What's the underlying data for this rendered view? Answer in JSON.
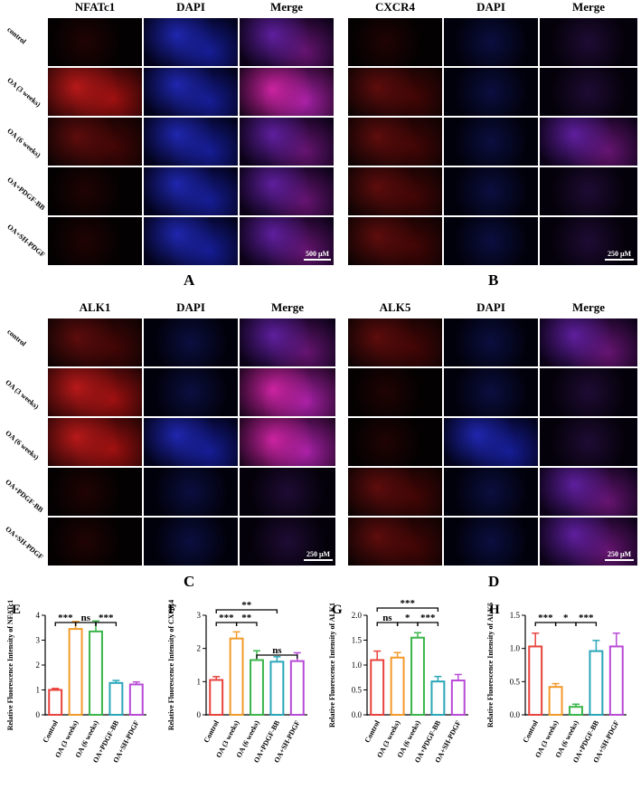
{
  "image_panels": [
    {
      "id": "A",
      "columns": [
        "NFATc1",
        "DAPI",
        "Merge"
      ],
      "rows": [
        "control",
        "OA (3 weeks)",
        "OA (6 weeks)",
        "OA+PDGF-BB",
        "OA+SH-PDGF"
      ],
      "scale": "500 μM"
    },
    {
      "id": "B",
      "columns": [
        "CXCR4",
        "DAPI",
        "Merge"
      ],
      "rows": [
        "control",
        "OA (3 weeks)",
        "OA (6 weeks)",
        "OA+PDGF-BB",
        "OA+SH-PDGF"
      ],
      "scale": "250 μM"
    },
    {
      "id": "C",
      "columns": [
        "ALK1",
        "DAPI",
        "Merge"
      ],
      "rows": [
        "control",
        "OA (3 weeks)",
        "OA (6 weeks)",
        "OA+PDGF-BB",
        "OA+SH-PDGF"
      ],
      "scale": "250 μM"
    },
    {
      "id": "D",
      "columns": [
        "ALK5",
        "DAPI",
        "Merge"
      ],
      "rows": [
        "control",
        "OA (3 weeks)",
        "OA (6 weeks)",
        "OA+PDGF-BB",
        "OA+SH-PDGF"
      ],
      "scale": "250 μM"
    }
  ],
  "panel_labels": {
    "A": "A",
    "B": "B",
    "C": "C",
    "D": "D"
  },
  "chart_data": [
    {
      "id": "E",
      "type": "bar",
      "categories": [
        "Control",
        "OA (3 weeks)",
        "OA (6 weeks)",
        "OA+PDGF-BB",
        "OA+SH-PDGF"
      ],
      "values": [
        1.0,
        3.45,
        3.35,
        1.28,
        1.22
      ],
      "errors": [
        0.06,
        0.3,
        0.42,
        0.1,
        0.1
      ],
      "ylabel": "Relative Fluorescence Intensity of NFATc1",
      "ylim": [
        0,
        4
      ],
      "yticks": [
        "0",
        "1",
        "2",
        "3",
        "4"
      ],
      "colors": [
        "#e8423c",
        "#f39a2a",
        "#3ab54a",
        "#2aa6b8",
        "#b84ad6"
      ],
      "significance": [
        "***",
        "ns",
        "***"
      ]
    },
    {
      "id": "F",
      "type": "bar",
      "categories": [
        "Control",
        "OA (3 weeks)",
        "OA (6 weeks)",
        "OA+PDGF-BB",
        "OA+SH-PDGF"
      ],
      "values": [
        1.05,
        2.3,
        1.65,
        1.6,
        1.62
      ],
      "errors": [
        0.1,
        0.2,
        0.28,
        0.15,
        0.25
      ],
      "ylabel": "Relative Fluorescence Intensity of CXCR4",
      "ylim": [
        0,
        3
      ],
      "yticks": [
        "0",
        "1",
        "2",
        "3"
      ],
      "colors": [
        "#e8423c",
        "#f39a2a",
        "#3ab54a",
        "#2aa6b8",
        "#b84ad6"
      ],
      "significance": [
        "**",
        "***",
        "**",
        "ns"
      ]
    },
    {
      "id": "G",
      "type": "bar",
      "categories": [
        "Control",
        "OA (3 weeks)",
        "OA (6 weeks)",
        "OA+PDGF-BB",
        "OA+SH-PDGF"
      ],
      "values": [
        1.1,
        1.15,
        1.55,
        0.67,
        0.69
      ],
      "errors": [
        0.18,
        0.1,
        0.1,
        0.1,
        0.12
      ],
      "ylabel": "Relative Fluorescence Intensity of ALK1",
      "ylim": [
        0,
        2
      ],
      "yticks": [
        "0.0",
        "0.5",
        "1.0",
        "1.5",
        "2.0"
      ],
      "colors": [
        "#e8423c",
        "#f39a2a",
        "#3ab54a",
        "#2aa6b8",
        "#b84ad6"
      ],
      "significance": [
        "***",
        "ns",
        "*",
        "***"
      ]
    },
    {
      "id": "H",
      "type": "bar",
      "categories": [
        "Control",
        "OA (3 weeks)",
        "OA (6 weeks)",
        "OA+PDGF-BB",
        "OA+SH-PDGF"
      ],
      "values": [
        1.03,
        0.42,
        0.12,
        0.96,
        1.03
      ],
      "errors": [
        0.2,
        0.05,
        0.04,
        0.16,
        0.2
      ],
      "ylabel": "Relative Fluorescence Intensity of ALK5",
      "ylim": [
        0,
        1.5
      ],
      "yticks": [
        "0.0",
        "0.5",
        "1.0",
        "1.5"
      ],
      "colors": [
        "#e8423c",
        "#f39a2a",
        "#3ab54a",
        "#2aa6b8",
        "#b84ad6"
      ],
      "significance": [
        "***",
        "*",
        "***"
      ]
    }
  ]
}
